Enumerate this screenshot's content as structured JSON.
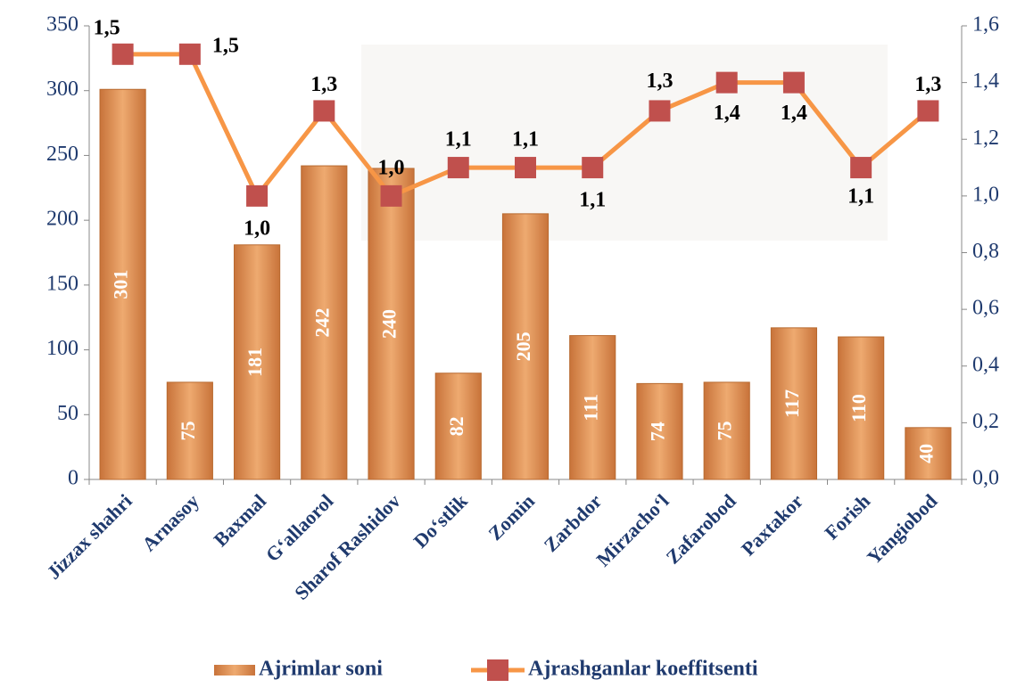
{
  "chart_data": {
    "type": "bar-line",
    "categories": [
      "Jizzax shahri",
      "Arnasoy",
      "Baxmal",
      "G‘allaorol",
      "Sharof Rashidov",
      "Do‘stlik",
      "Zomin",
      "Zarbdor",
      "Mirzacho‘l",
      "Zafarobod",
      "Paxtakor",
      "Forish",
      "Yangiobod"
    ],
    "series": [
      {
        "name": "Ajrimlar soni",
        "type": "bar",
        "color": "#e39a5c",
        "values": [
          301,
          75,
          181,
          242,
          240,
          82,
          205,
          111,
          74,
          75,
          117,
          110,
          40
        ]
      },
      {
        "name": "Ajrashganlar koeffitsenti",
        "type": "line",
        "axis": "y2",
        "color": "#f79646",
        "marker_color": "#c0504d",
        "values": [
          1.5,
          1.5,
          1.0,
          1.3,
          1.0,
          1.1,
          1.1,
          1.1,
          1.3,
          1.4,
          1.4,
          1.1,
          1.3
        ],
        "value_labels": [
          "1,5",
          "1,5",
          "1,0",
          "1,3",
          "1,0",
          "1,1",
          "1,1",
          "1,1",
          "1,3",
          "1,4",
          "1,4",
          "1,1",
          "1,3"
        ]
      }
    ],
    "ylim": [
      0,
      350
    ],
    "yticks": [
      0,
      50,
      100,
      150,
      200,
      250,
      300,
      350
    ],
    "y2lim": [
      0,
      1.6
    ],
    "y2ticks": [
      {
        "value": 0,
        "label": "0,0"
      },
      {
        "value": 0.2,
        "label": "0,2"
      },
      {
        "value": 0.4,
        "label": "0,4"
      },
      {
        "value": 0.6,
        "label": "0,6"
      },
      {
        "value": 0.8,
        "label": "0,8"
      },
      {
        "value": 1.0,
        "label": "1,0"
      },
      {
        "value": 1.2,
        "label": "1,2"
      },
      {
        "value": 1.4,
        "label": "1,4"
      },
      {
        "value": 1.6,
        "label": "1,6"
      }
    ],
    "legend": "bottom"
  }
}
